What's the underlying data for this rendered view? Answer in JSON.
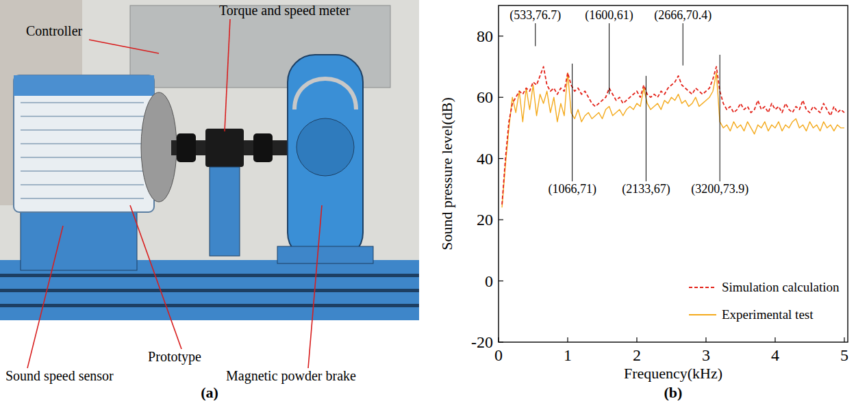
{
  "panel_labels": [
    "(a)",
    "(b)"
  ],
  "setup": {
    "labels": [
      "Controller",
      "Torque and speed meter",
      "Prototype",
      "Sound speed sensor",
      "Magnetic powder brake"
    ]
  },
  "chart_data": {
    "type": "line",
    "x_label": "Frequency(kHz)",
    "y_label": "Sound pressure level(dB)",
    "xlim": [
      0,
      5.05
    ],
    "xticks": [
      0,
      1,
      2,
      3,
      4,
      5
    ],
    "ylim": [
      -20,
      90
    ],
    "yticks": [
      -20,
      0,
      20,
      40,
      60,
      80
    ],
    "legend": "lower right",
    "x": [
      0.05,
      0.1,
      0.15,
      0.2,
      0.25,
      0.3,
      0.35,
      0.4,
      0.45,
      0.5,
      0.55,
      0.6,
      0.65,
      0.7,
      0.75,
      0.8,
      0.85,
      0.9,
      0.95,
      1.0,
      1.05,
      1.1,
      1.15,
      1.2,
      1.25,
      1.3,
      1.35,
      1.4,
      1.45,
      1.5,
      1.55,
      1.6,
      1.65,
      1.7,
      1.75,
      1.8,
      1.85,
      1.9,
      1.95,
      2.0,
      2.05,
      2.1,
      2.15,
      2.2,
      2.25,
      2.3,
      2.35,
      2.4,
      2.45,
      2.5,
      2.55,
      2.6,
      2.65,
      2.7,
      2.75,
      2.8,
      2.85,
      2.9,
      2.95,
      3.0,
      3.05,
      3.1,
      3.15,
      3.2,
      3.25,
      3.3,
      3.35,
      3.4,
      3.45,
      3.5,
      3.55,
      3.6,
      3.65,
      3.7,
      3.75,
      3.8,
      3.85,
      3.9,
      3.95,
      4.0,
      4.05,
      4.1,
      4.15,
      4.2,
      4.25,
      4.3,
      4.35,
      4.4,
      4.45,
      4.5,
      4.55,
      4.6,
      4.65,
      4.7,
      4.75,
      4.8,
      4.85,
      4.9,
      4.95,
      5.0
    ],
    "series": [
      {
        "name": "Simulation calculation",
        "color": "#e32219",
        "line_style": "dashed",
        "values": [
          25,
          40,
          52,
          58,
          60,
          62,
          61,
          63,
          62,
          65,
          64,
          67,
          70,
          64,
          62,
          63,
          61,
          63,
          62,
          68,
          64,
          62,
          63,
          61,
          62,
          60,
          58,
          57,
          58,
          59,
          60,
          63,
          61,
          59,
          60,
          58,
          59,
          60,
          61,
          62,
          60,
          64,
          61,
          60,
          61,
          60,
          62,
          61,
          63,
          64,
          65,
          67,
          64,
          63,
          62,
          61,
          63,
          62,
          61,
          62,
          63,
          66,
          70,
          62,
          58,
          56,
          57,
          55,
          56,
          58,
          56,
          57,
          55,
          56,
          59,
          56,
          57,
          55,
          58,
          56,
          57,
          55,
          58,
          56,
          55,
          57,
          56,
          59,
          56,
          55,
          57,
          56,
          55,
          58,
          56,
          54,
          57,
          55,
          56,
          55
        ]
      },
      {
        "name": "Experimental test",
        "color": "#f4aa1c",
        "line_style": "solid",
        "values": [
          24,
          38,
          50,
          60,
          55,
          62,
          52,
          63,
          56,
          64,
          54,
          61,
          58,
          62,
          55,
          60,
          52,
          58,
          54,
          68,
          55,
          53,
          56,
          52,
          54,
          55,
          53,
          54,
          55,
          53,
          56,
          57,
          54,
          55,
          56,
          54,
          56,
          57,
          56,
          58,
          57,
          63,
          58,
          56,
          57,
          58,
          56,
          59,
          58,
          60,
          59,
          61,
          58,
          59,
          57,
          58,
          60,
          57,
          58,
          59,
          60,
          62,
          68,
          52,
          50,
          51,
          49,
          52,
          50,
          51,
          49,
          52,
          50,
          48,
          51,
          50,
          52,
          49,
          51,
          50,
          52,
          49,
          51,
          50,
          52,
          53,
          50,
          51,
          49,
          52,
          50,
          51,
          49,
          52,
          50,
          51,
          49,
          51,
          50,
          50
        ]
      }
    ],
    "annotations": [
      {
        "text": "(533,76.7)",
        "x": 0.533,
        "y": 76.7
      },
      {
        "text": "(1066,71)",
        "x": 1.066,
        "y": 71
      },
      {
        "text": "(1600,61)",
        "x": 1.6,
        "y": 61
      },
      {
        "text": "(2133,67)",
        "x": 2.133,
        "y": 67
      },
      {
        "text": "(2666,70.4)",
        "x": 2.666,
        "y": 70.4
      },
      {
        "text": "(3200,73.9)",
        "x": 3.2,
        "y": 73.9
      }
    ]
  }
}
